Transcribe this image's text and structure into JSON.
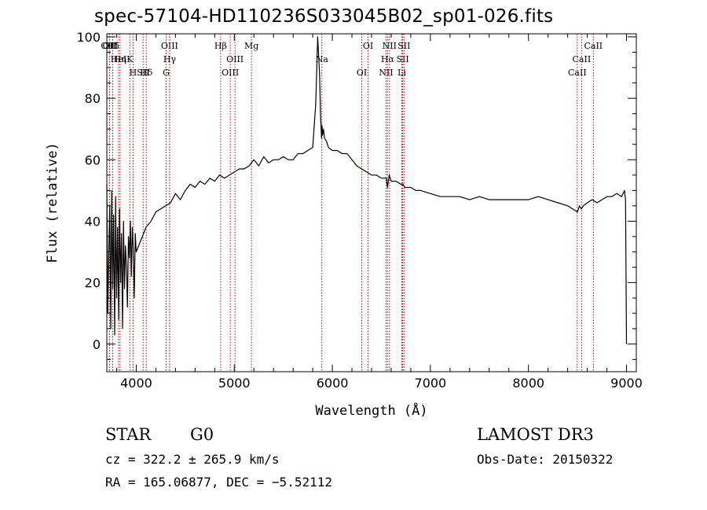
{
  "chart_data": {
    "type": "line",
    "title": "spec-57104-HD110236S033045B02_sp01-026.fits",
    "xlabel": "Wavelength (Å)",
    "ylabel": "Flux (relative)",
    "xlim": [
      3700,
      9100
    ],
    "ylim": [
      -9,
      101
    ],
    "x_ticks": [
      4000,
      5000,
      6000,
      7000,
      8000,
      9000
    ],
    "y_ticks": [
      0,
      20,
      40,
      60,
      80,
      100
    ],
    "series": [
      {
        "name": "flux",
        "x": [
          3700,
          3710,
          3720,
          3730,
          3740,
          3750,
          3760,
          3770,
          3780,
          3790,
          3800,
          3810,
          3820,
          3830,
          3840,
          3850,
          3860,
          3870,
          3880,
          3890,
          3900,
          3910,
          3920,
          3930,
          3940,
          3950,
          3960,
          3970,
          3980,
          3990,
          4000,
          4050,
          4100,
          4150,
          4200,
          4250,
          4300,
          4350,
          4400,
          4450,
          4500,
          4550,
          4600,
          4650,
          4700,
          4750,
          4800,
          4850,
          4900,
          4950,
          5000,
          5050,
          5100,
          5150,
          5200,
          5250,
          5300,
          5350,
          5400,
          5450,
          5500,
          5550,
          5600,
          5650,
          5700,
          5750,
          5800,
          5830,
          5850,
          5870,
          5880,
          5890,
          5895,
          5900,
          5910,
          5920,
          5940,
          5960,
          6000,
          6050,
          6100,
          6150,
          6200,
          6250,
          6300,
          6350,
          6400,
          6450,
          6500,
          6550,
          6563,
          6580,
          6600,
          6650,
          6700,
          6720,
          6740,
          6760,
          6800,
          6850,
          6900,
          7000,
          7100,
          7200,
          7300,
          7400,
          7500,
          7600,
          7700,
          7800,
          7900,
          8000,
          8100,
          8200,
          8300,
          8400,
          8450,
          8500,
          8520,
          8540,
          8560,
          8600,
          8650,
          8700,
          8750,
          8800,
          8850,
          8900,
          8950,
          8980,
          8990,
          9000
        ],
        "values": [
          52,
          10,
          30,
          45,
          5,
          50,
          18,
          42,
          3,
          48,
          15,
          38,
          8,
          44,
          20,
          36,
          5,
          40,
          18,
          32,
          25,
          12,
          35,
          28,
          40,
          22,
          38,
          30,
          15,
          36,
          30,
          34,
          38,
          40,
          43,
          44,
          45,
          46,
          49,
          47,
          50,
          52,
          51,
          53,
          52,
          54,
          53,
          55,
          54,
          55,
          56,
          57,
          57,
          58,
          60,
          58,
          61,
          59,
          60,
          60,
          61,
          60,
          60,
          62,
          62,
          63,
          64,
          78,
          100,
          88,
          74,
          67,
          71,
          68,
          70,
          67,
          66,
          64,
          63,
          63,
          62,
          62,
          60,
          58,
          57,
          56,
          55,
          55,
          54,
          54,
          51,
          55,
          53,
          53,
          52,
          52,
          51,
          51,
          51,
          50,
          50,
          49,
          48,
          48,
          48,
          47,
          48,
          47,
          47,
          47,
          47,
          47,
          48,
          47,
          46,
          45,
          44,
          43,
          45,
          44,
          45,
          46,
          47,
          46,
          47,
          48,
          48,
          49,
          48,
          50,
          47,
          0
        ]
      }
    ],
    "line_marks": [
      {
        "label": "Hδ",
        "wave": 3760
      },
      {
        "label": "K",
        "wave": 3934
      },
      {
        "label": "Hδ",
        "wave": 4102
      },
      {
        "label": "OIII",
        "wave": 4340
      },
      {
        "label": "Hγ",
        "wave": 4341
      },
      {
        "label": "G",
        "wave": 4305
      },
      {
        "label": "OII",
        "wave": 3727
      },
      {
        "label": "HeI",
        "wave": 3820
      },
      {
        "label": "SII",
        "wave": 4070
      },
      {
        "label": "OIII",
        "wave": 3727
      },
      {
        "label": "Hη",
        "wave": 3835
      },
      {
        "label": "H",
        "wave": 3968
      },
      {
        "label": "Hβ",
        "wave": 4861
      },
      {
        "label": "OIII",
        "wave": 5007
      },
      {
        "label": "OIII",
        "wave": 4959
      },
      {
        "label": "Mg",
        "wave": 5175
      },
      {
        "label": "Na",
        "wave": 5893
      },
      {
        "label": "OI",
        "wave": 6300
      },
      {
        "label": "OI",
        "wave": 6364
      },
      {
        "label": "Hα",
        "wave": 6563
      },
      {
        "label": "NII",
        "wave": 6548
      },
      {
        "label": "NII",
        "wave": 6583
      },
      {
        "label": "SII",
        "wave": 6717
      },
      {
        "label": "Li",
        "wave": 6708
      },
      {
        "label": "SII",
        "wave": 6731
      },
      {
        "label": "CaII",
        "wave": 8542
      },
      {
        "label": "CaII",
        "wave": 8498
      },
      {
        "label": "CaII",
        "wave": 8662
      }
    ]
  },
  "info": {
    "object_class": "STAR",
    "subclass": "G0",
    "survey": "LAMOST DR3",
    "redshift_line": "cz = 322.2 ± 265.9 km/s",
    "obs_date": "Obs-Date: 20150322",
    "coords": "RA = 165.06877, DEC =  −5.52112"
  }
}
